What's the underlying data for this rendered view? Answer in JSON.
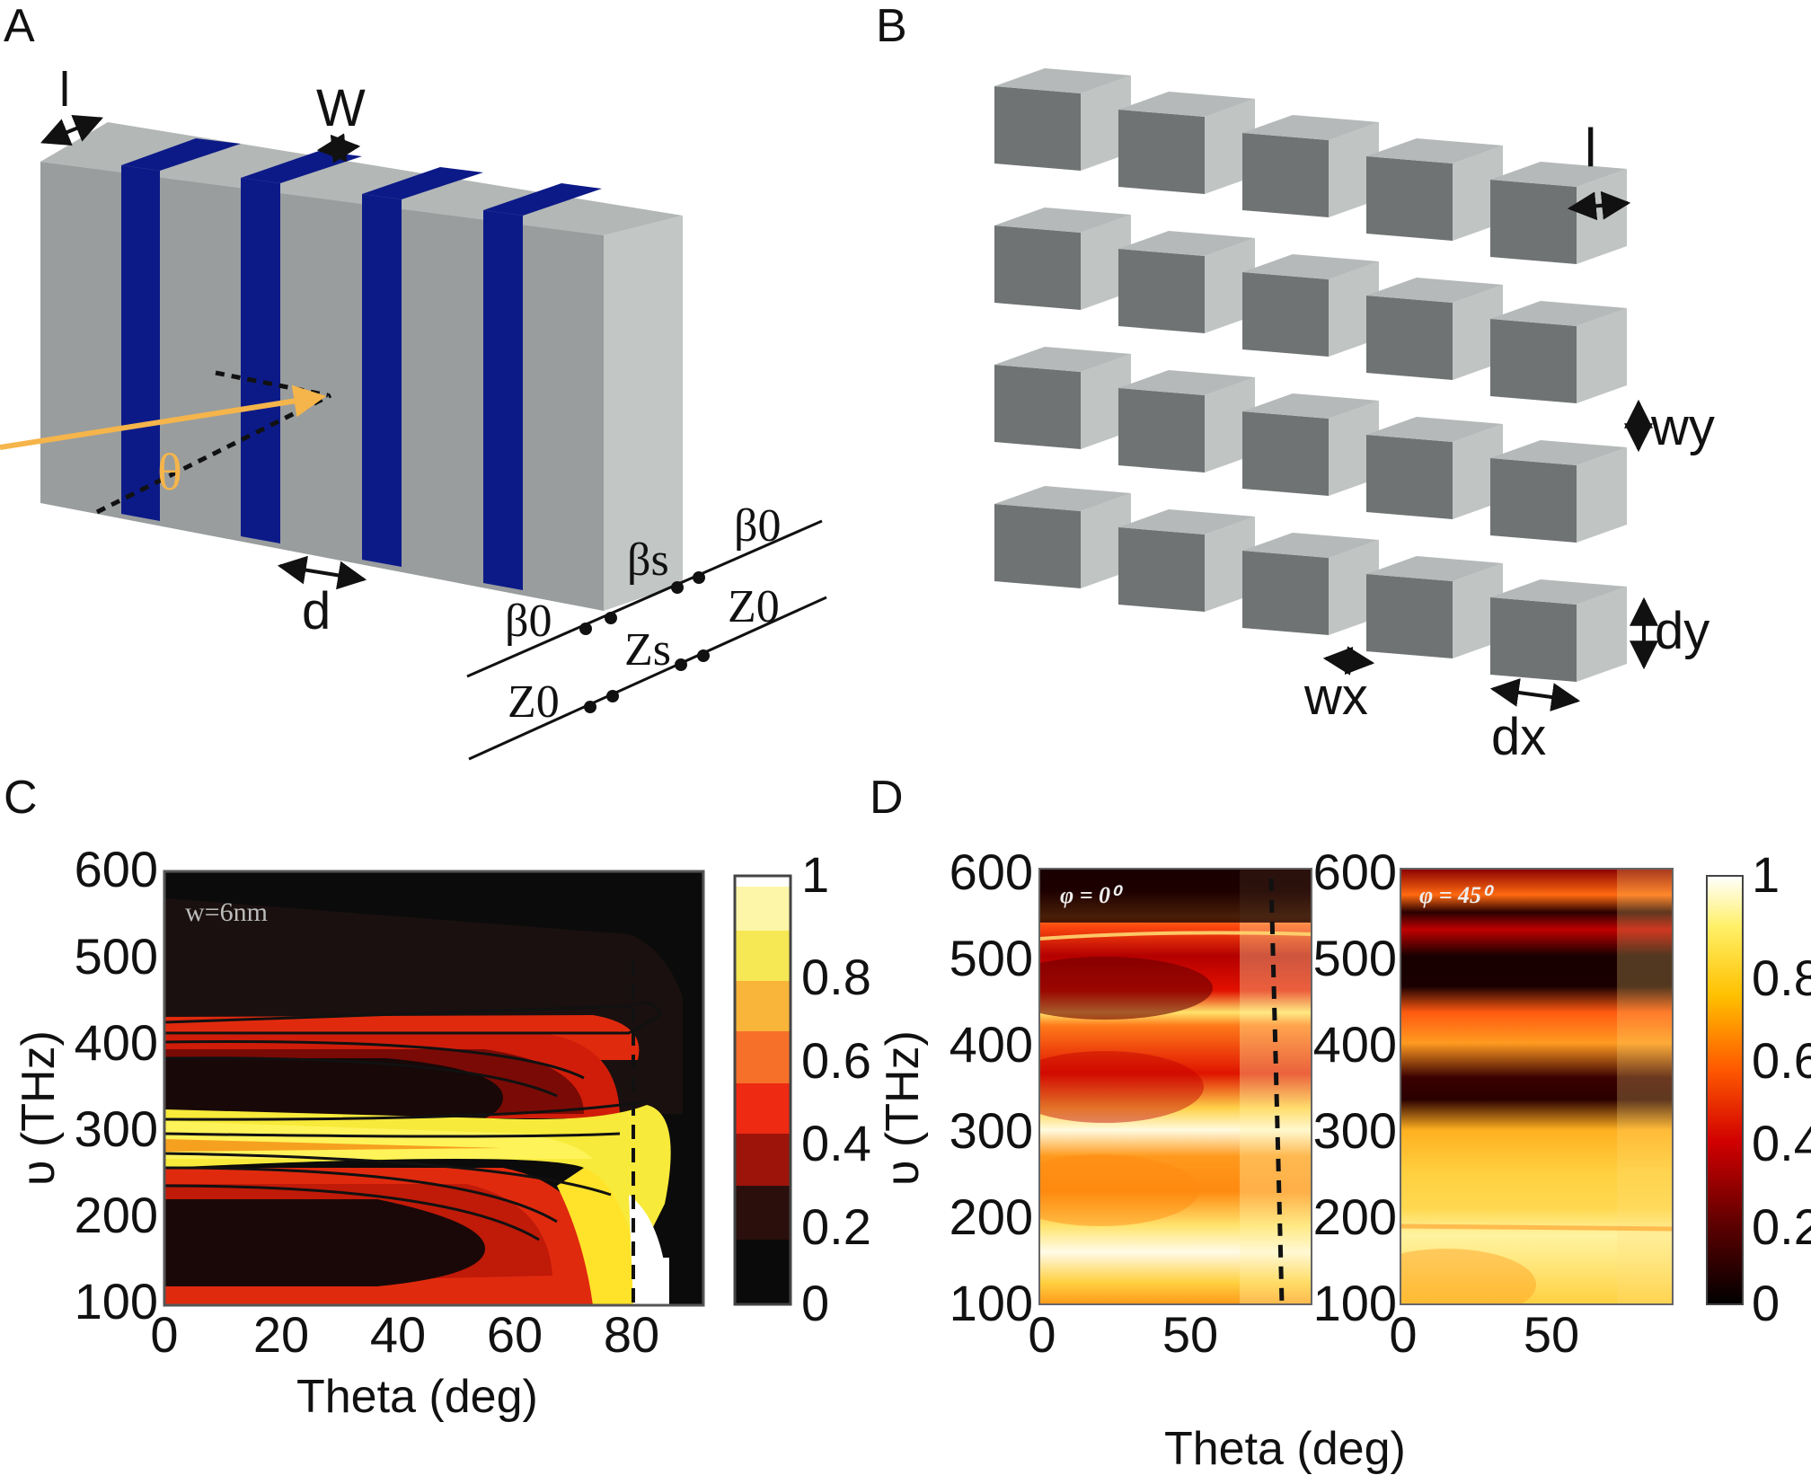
{
  "panels": {
    "A": {
      "letter": "A",
      "labels": {
        "l": "l",
        "W": "W",
        "d": "d",
        "theta": "θ"
      },
      "circuit": {
        "beta0_top": "β0",
        "betas": "βs",
        "beta0_left": "β0",
        "Z0_right": "Z0",
        "Zs": "Zs",
        "Z0_left": "Z0"
      }
    },
    "B": {
      "letter": "B",
      "labels": {
        "l": "l",
        "wy": "wy",
        "dy": "dy",
        "wx": "wx",
        "dx": "dx"
      }
    },
    "C": {
      "letter": "C",
      "annotation": "w=6nm",
      "ylabel": "υ (THz)",
      "xlabel": "Theta (deg)",
      "xticks": [
        "0",
        "20",
        "40",
        "60",
        "80"
      ],
      "yticks": [
        "600",
        "500",
        "400",
        "300",
        "200",
        "100"
      ],
      "colorbar_ticks": [
        "1",
        "0.8",
        "0.6",
        "0.4",
        "0.2",
        "0"
      ]
    },
    "D": {
      "letter": "D",
      "left_annotation": "φ = 0⁰",
      "right_annotation": "φ = 45⁰",
      "ylabel": "υ (THz)",
      "xlabel": "Theta (deg)",
      "left_xticks": [
        "0",
        "50"
      ],
      "right_xticks": [
        "0",
        "50"
      ],
      "left_yticks": [
        "600",
        "500",
        "400",
        "300",
        "200",
        "100"
      ],
      "right_yticks": [
        "600",
        "500",
        "400",
        "300",
        "200",
        "100"
      ],
      "colorbar_ticks": [
        "1",
        "0.8",
        "0.6",
        "0.4",
        "0.2",
        "0"
      ]
    }
  },
  "colors": {
    "gray_front": "#9b9fa0",
    "gray_top": "#b5b9b9",
    "gray_side": "#c0c4c2",
    "blue_stripe": "#0c1a88",
    "incident_ray": "#f5b54b"
  },
  "chart_data": [
    {
      "type": "heatmap",
      "panel": "C",
      "x_range": [
        0,
        90
      ],
      "y_range": [
        100,
        600
      ],
      "xlabel": "Theta (deg)",
      "ylabel": "υ (THz)",
      "colorbar_range": [
        0,
        1
      ],
      "colorbar_levels": [
        0,
        0.2,
        0.4,
        0.6,
        0.8,
        1
      ],
      "annotation": "w=6nm",
      "dashed_line_theta": 76
    },
    {
      "type": "heatmap",
      "panel": "D-left",
      "x_range": [
        0,
        90
      ],
      "y_range": [
        100,
        600
      ],
      "annotation": "φ = 0⁰",
      "colorbar_range": [
        0,
        1
      ],
      "dashed_line_theta": 80
    },
    {
      "type": "heatmap",
      "panel": "D-right",
      "x_range": [
        0,
        90
      ],
      "y_range": [
        100,
        600
      ],
      "annotation": "φ = 45⁰",
      "colorbar_range": [
        0,
        1
      ]
    }
  ]
}
